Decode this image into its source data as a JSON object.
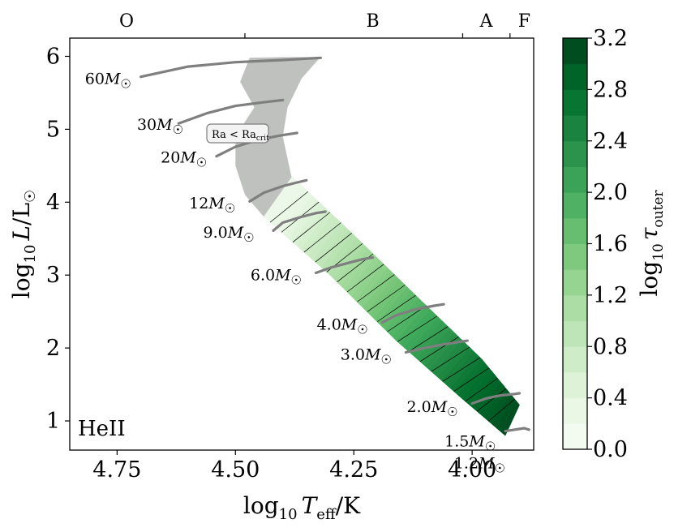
{
  "chart_data": {
    "type": "heatmap",
    "title": "",
    "xlabel": "log10 Teff/K",
    "ylabel": "log10 L/L☉",
    "xlabel_parts": {
      "prefix": "log",
      "sub": "10",
      "var": "T",
      "var_sub": "eff",
      "suffix": "/K"
    },
    "ylabel_parts": {
      "prefix": "log",
      "sub": "10",
      "var": "L",
      "suffix": "/L",
      "sun": "☉"
    },
    "xlim": [
      4.85,
      3.87
    ],
    "ylim": [
      0.6,
      6.25
    ],
    "x_ticks": [
      4.75,
      4.5,
      4.25,
      4.0
    ],
    "x_tick_labels": [
      "4.75",
      "4.50",
      "4.25",
      "4.00"
    ],
    "y_ticks": [
      1,
      2,
      3,
      4,
      5,
      6
    ],
    "y_tick_labels": [
      "1",
      "2",
      "3",
      "4",
      "5",
      "6"
    ],
    "panel_label": "HeII",
    "annotation": {
      "text": "Ra < Ra",
      "sub": "crit",
      "x": 4.43,
      "y": 4.78
    },
    "spectral_classes": [
      {
        "label": "O",
        "x": 4.73
      },
      {
        "label": "B",
        "x": 4.21
      },
      {
        "label": "A",
        "x": 3.97
      },
      {
        "label": "F",
        "x": 3.89
      }
    ],
    "spectral_boundaries": [
      4.48,
      4.02,
      3.92
    ],
    "colorbar": {
      "label": "log10 τouter",
      "label_parts": {
        "prefix": "log",
        "sub": "10",
        "var": "τ",
        "var_sub": "outer"
      },
      "min": 0.0,
      "max": 3.2,
      "step": 0.2,
      "ticks": [
        0.0,
        0.4,
        0.8,
        1.2,
        1.6,
        2.0,
        2.4,
        2.8,
        3.2
      ],
      "tick_labels": [
        "0.0",
        "0.4",
        "0.8",
        "1.2",
        "1.6",
        "2.0",
        "2.4",
        "2.8",
        "3.2"
      ],
      "colormap": "Greens"
    },
    "region_color_grey": "#b9bcb9",
    "track_color": "#7f7f7f",
    "hatch_color": "#000000",
    "tracks": [
      {
        "label": "60M",
        "sun": "☉",
        "label_pos": [
          4.72,
          5.7
        ],
        "x": [
          4.7,
          4.6,
          4.5,
          4.4,
          4.32
        ],
        "y": [
          5.72,
          5.86,
          5.92,
          5.95,
          5.98
        ]
      },
      {
        "label": "30M",
        "sun": "☉",
        "label_pos": [
          4.61,
          5.07
        ],
        "x": [
          4.62,
          4.56,
          4.5,
          4.44,
          4.4
        ],
        "y": [
          5.08,
          5.22,
          5.32,
          5.37,
          5.4
        ]
      },
      {
        "label": "20M",
        "sun": "☉",
        "label_pos": [
          4.56,
          4.62
        ],
        "x": [
          4.54,
          4.5,
          4.45,
          4.4,
          4.37
        ],
        "y": [
          4.63,
          4.76,
          4.86,
          4.92,
          4.95
        ]
      },
      {
        "label": "12M",
        "sun": "☉",
        "label_pos": [
          4.5,
          3.99
        ],
        "x": [
          4.47,
          4.44,
          4.4,
          4.37,
          4.35
        ],
        "y": [
          4.01,
          4.13,
          4.22,
          4.27,
          4.3
        ]
      },
      {
        "label": "9.0M",
        "sun": "☉",
        "label_pos": [
          4.46,
          3.59
        ],
        "x": [
          4.42,
          4.4,
          4.36,
          4.33,
          4.31
        ],
        "y": [
          3.61,
          3.72,
          3.8,
          3.85,
          3.87
        ]
      },
      {
        "label": "6.0M",
        "sun": "☉",
        "label_pos": [
          4.36,
          3.01
        ],
        "x": [
          4.33,
          4.3,
          4.26,
          4.23,
          4.21
        ],
        "y": [
          3.03,
          3.1,
          3.17,
          3.22,
          3.24
        ]
      },
      {
        "label": "4.0M",
        "sun": "☉",
        "label_pos": [
          4.22,
          2.33
        ],
        "x": [
          4.19,
          4.16,
          4.12,
          4.08,
          4.06
        ],
        "y": [
          2.35,
          2.45,
          2.53,
          2.58,
          2.6
        ]
      },
      {
        "label": "3.0M",
        "sun": "☉",
        "label_pos": [
          4.17,
          1.92
        ],
        "x": [
          4.14,
          4.1,
          4.06,
          4.03,
          4.01
        ],
        "y": [
          1.94,
          2.0,
          2.05,
          2.08,
          2.1
        ]
      },
      {
        "label": "2.0M",
        "sun": "☉",
        "label_pos": [
          4.03,
          1.2
        ],
        "x": [
          4.0,
          3.97,
          3.94,
          3.91,
          3.9
        ],
        "y": [
          1.24,
          1.31,
          1.35,
          1.37,
          1.38
        ]
      },
      {
        "label": "1.5M",
        "sun": "☉",
        "label_pos": [
          3.95,
          0.73
        ],
        "x": [
          3.93,
          3.91,
          3.89,
          3.88
        ],
        "y": [
          0.86,
          0.88,
          0.9,
          0.88
        ]
      },
      {
        "label": "1.2M",
        "sun": "☉",
        "label_pos": [
          3.93,
          0.43
        ],
        "x": [],
        "y": []
      }
    ],
    "grey_region": {
      "upper_edge": [
        [
          4.47,
          5.98
        ],
        [
          4.4,
          5.99
        ],
        [
          4.32,
          5.99
        ]
      ],
      "right_edge": [
        [
          4.32,
          5.99
        ],
        [
          4.36,
          5.7
        ],
        [
          4.39,
          5.3
        ],
        [
          4.4,
          4.9
        ],
        [
          4.39,
          4.6
        ],
        [
          4.38,
          4.3
        ]
      ],
      "left_edge": [
        [
          4.47,
          5.98
        ],
        [
          4.49,
          5.65
        ],
        [
          4.46,
          5.3
        ],
        [
          4.5,
          4.9
        ],
        [
          4.5,
          4.5
        ],
        [
          4.48,
          4.1
        ],
        [
          4.44,
          3.8
        ]
      ]
    },
    "main_band": {
      "upper_edge": [
        [
          4.38,
          4.35
        ],
        [
          4.25,
          3.55
        ],
        [
          4.1,
          2.6
        ],
        [
          3.98,
          1.85
        ],
        [
          3.9,
          1.22
        ]
      ],
      "lower_edge": [
        [
          4.44,
          3.8
        ],
        [
          4.3,
          3.0
        ],
        [
          4.16,
          2.1
        ],
        [
          4.02,
          1.3
        ],
        [
          3.93,
          0.8
        ]
      ],
      "value_samples": [
        {
          "logL": 4.3,
          "value": 0.1
        },
        {
          "logL": 3.9,
          "value": 0.3
        },
        {
          "logL": 3.6,
          "value": 0.7
        },
        {
          "logL": 3.2,
          "value": 1.1
        },
        {
          "logL": 2.8,
          "value": 1.5
        },
        {
          "logL": 2.4,
          "value": 1.9
        },
        {
          "logL": 2.0,
          "value": 2.3
        },
        {
          "logL": 1.6,
          "value": 2.7
        },
        {
          "logL": 1.2,
          "value": 3.0
        },
        {
          "logL": 0.9,
          "value": 3.2
        }
      ]
    }
  }
}
